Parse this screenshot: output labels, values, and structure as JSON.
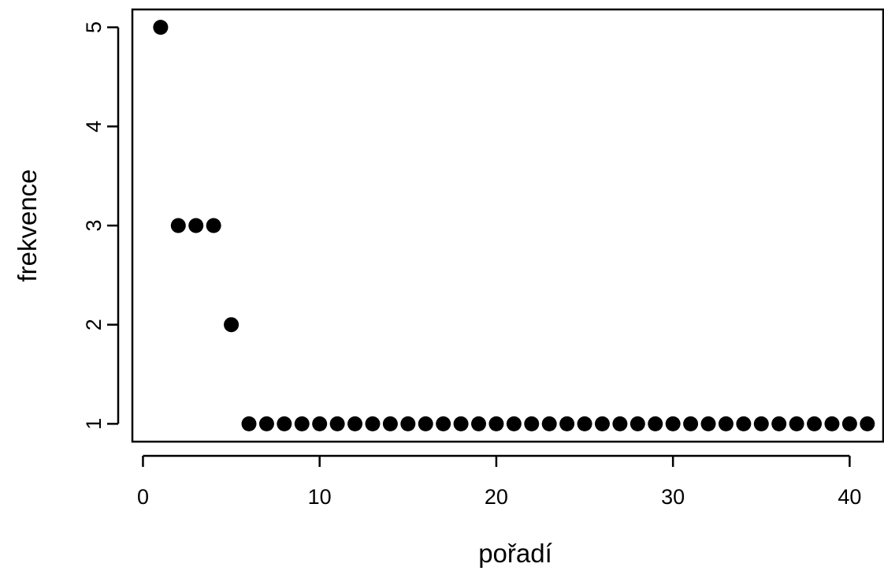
{
  "chart_data": {
    "type": "scatter",
    "title": "",
    "xlabel": "pořadí",
    "ylabel": "frekvence",
    "xlim": [
      -0.6,
      41.9
    ],
    "ylim": [
      0.82,
      5.18
    ],
    "x_ticks": [
      0,
      10,
      20,
      30,
      40
    ],
    "y_ticks": [
      1,
      2,
      3,
      4,
      5
    ],
    "grid": false,
    "legend": "none",
    "point_color": "#000000",
    "series": [
      {
        "x": [
          1,
          2,
          3,
          4,
          5,
          6,
          7,
          8,
          9,
          10,
          11,
          12,
          13,
          14,
          15,
          16,
          17,
          18,
          19,
          20,
          21,
          22,
          23,
          24,
          25,
          26,
          27,
          28,
          29,
          30,
          31,
          32,
          33,
          34,
          35,
          36,
          37,
          38,
          39,
          40,
          41
        ],
        "y": [
          5,
          3,
          3,
          3,
          2,
          1,
          1,
          1,
          1,
          1,
          1,
          1,
          1,
          1,
          1,
          1,
          1,
          1,
          1,
          1,
          1,
          1,
          1,
          1,
          1,
          1,
          1,
          1,
          1,
          1,
          1,
          1,
          1,
          1,
          1,
          1,
          1,
          1,
          1,
          1,
          1
        ]
      }
    ]
  }
}
